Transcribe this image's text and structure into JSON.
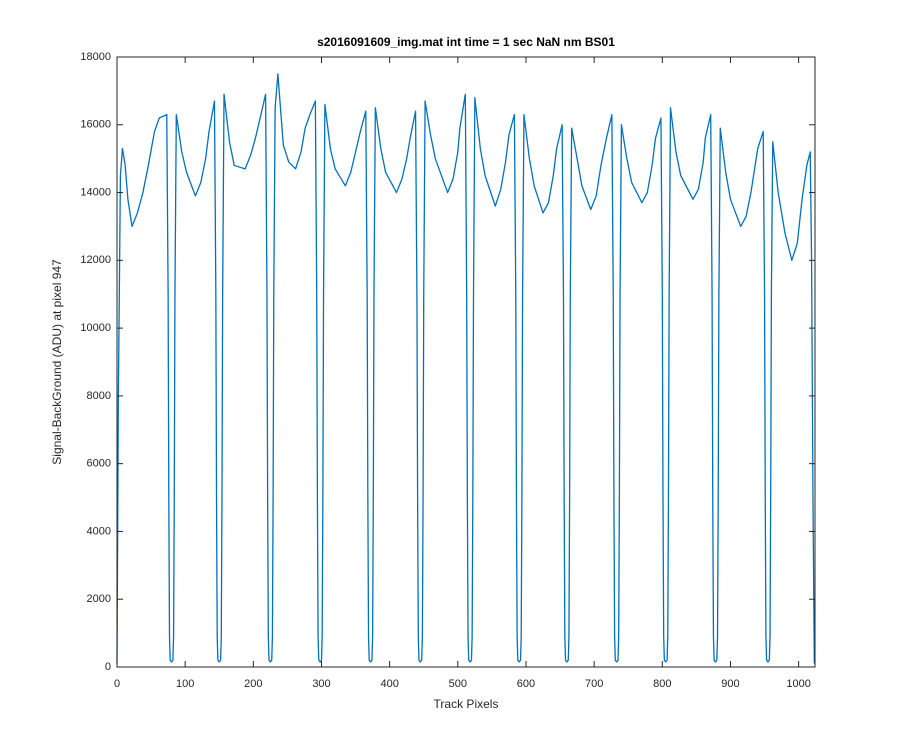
{
  "chart_data": {
    "type": "line",
    "title": "s2016091609_img.mat int time = 1 sec  NaN nm BS01",
    "x_label": "Track Pixels",
    "y_label": "Signal-BackGround (ADU) at pixel 947",
    "xlim": [
      0,
      1024
    ],
    "ylim": [
      0,
      18000
    ],
    "xticks": [
      0,
      100,
      200,
      300,
      400,
      500,
      600,
      700,
      800,
      900,
      1000
    ],
    "yticks": [
      0,
      2000,
      4000,
      6000,
      8000,
      10000,
      12000,
      14000,
      16000,
      18000
    ],
    "grid": false,
    "series": [
      {
        "name": null,
        "color": "#0072bd",
        "x": [
          0,
          2,
          5,
          8,
          12,
          16,
          22,
          30,
          38,
          46,
          55,
          62,
          73,
          75,
          76,
          77,
          78,
          80,
          82,
          83,
          84,
          85,
          87,
          95,
          102,
          115,
          123,
          130,
          135,
          143,
          145,
          146,
          147,
          148,
          150,
          152,
          153,
          154,
          155,
          157,
          165,
          172,
          188,
          196,
          203,
          210,
          218,
          220,
          221,
          222,
          223,
          225,
          227,
          228,
          229,
          230,
          232,
          236,
          244,
          252,
          262,
          270,
          276,
          283,
          291,
          293,
          294,
          295,
          296,
          298,
          300,
          301,
          302,
          303,
          305,
          313,
          320,
          335,
          343,
          350,
          357,
          365,
          367,
          368,
          369,
          370,
          372,
          374,
          375,
          376,
          377,
          379,
          387,
          394,
          410,
          418,
          425,
          430,
          438,
          440,
          441,
          442,
          443,
          445,
          447,
          448,
          449,
          450,
          452,
          460,
          467,
          485,
          493,
          500,
          503,
          511,
          513,
          514,
          515,
          516,
          518,
          520,
          521,
          522,
          523,
          525,
          533,
          540,
          555,
          563,
          570,
          575,
          583,
          585,
          586,
          587,
          588,
          590,
          592,
          593,
          594,
          595,
          597,
          605,
          612,
          625,
          633,
          640,
          645,
          653,
          655,
          656,
          657,
          658,
          660,
          662,
          663,
          664,
          665,
          667,
          675,
          682,
          695,
          703,
          710,
          718,
          726,
          728,
          729,
          730,
          731,
          733,
          735,
          736,
          737,
          738,
          740,
          748,
          755,
          770,
          778,
          785,
          790,
          798,
          800,
          801,
          802,
          803,
          805,
          807,
          808,
          809,
          810,
          812,
          820,
          827,
          845,
          853,
          860,
          863,
          871,
          873,
          874,
          875,
          876,
          878,
          880,
          881,
          882,
          883,
          885,
          893,
          900,
          915,
          923,
          930,
          940,
          948,
          950,
          951,
          952,
          953,
          955,
          957,
          958,
          959,
          960,
          962,
          970,
          980,
          990,
          998,
          1005,
          1012,
          1017,
          1019,
          1021,
          1023
        ],
        "values": [
          100,
          8000,
          14500,
          15300,
          14800,
          13800,
          13000,
          13400,
          14000,
          14800,
          15800,
          16200,
          16300,
          11000,
          5000,
          900,
          200,
          150,
          200,
          900,
          5000,
          11000,
          16300,
          15200,
          14600,
          13900,
          14300,
          15000,
          15800,
          16700,
          11000,
          5000,
          900,
          200,
          150,
          200,
          900,
          5000,
          11000,
          16900,
          15500,
          14800,
          14700,
          15100,
          15600,
          16200,
          16900,
          11000,
          5000,
          900,
          200,
          150,
          200,
          900,
          5000,
          11000,
          16500,
          17500,
          15400,
          14900,
          14700,
          15200,
          15900,
          16300,
          16700,
          11000,
          5000,
          900,
          200,
          150,
          200,
          900,
          5000,
          11000,
          16600,
          15300,
          14700,
          14200,
          14600,
          15200,
          15800,
          16400,
          11000,
          5000,
          900,
          200,
          150,
          200,
          900,
          5000,
          11000,
          16500,
          15300,
          14600,
          14000,
          14400,
          15000,
          15600,
          16400,
          11000,
          5000,
          900,
          200,
          150,
          200,
          900,
          5000,
          11000,
          16700,
          15700,
          15000,
          14000,
          14400,
          15200,
          15900,
          16900,
          11000,
          5000,
          900,
          200,
          150,
          200,
          900,
          5000,
          11000,
          16800,
          15300,
          14500,
          13600,
          14100,
          14900,
          15700,
          16300,
          11000,
          5000,
          900,
          200,
          150,
          200,
          900,
          5000,
          11000,
          16300,
          15000,
          14200,
          13400,
          13700,
          14500,
          15300,
          16000,
          11000,
          5000,
          900,
          200,
          150,
          200,
          900,
          5000,
          11000,
          15900,
          15000,
          14200,
          13500,
          13900,
          14800,
          15600,
          16300,
          11000,
          5000,
          900,
          200,
          150,
          200,
          900,
          5000,
          11000,
          16000,
          15000,
          14300,
          13700,
          14000,
          14800,
          15600,
          16200,
          11000,
          5000,
          900,
          200,
          150,
          200,
          900,
          5000,
          11000,
          16500,
          15200,
          14500,
          13800,
          14100,
          14900,
          15600,
          16300,
          11000,
          5000,
          900,
          200,
          150,
          200,
          900,
          5000,
          11000,
          15900,
          14600,
          13800,
          13000,
          13300,
          14000,
          15300,
          15800,
          11000,
          5000,
          900,
          200,
          150,
          200,
          900,
          5000,
          11000,
          15500,
          14000,
          12800,
          12000,
          12500,
          13800,
          14800,
          15200,
          12000,
          5000,
          100
        ]
      }
    ]
  }
}
